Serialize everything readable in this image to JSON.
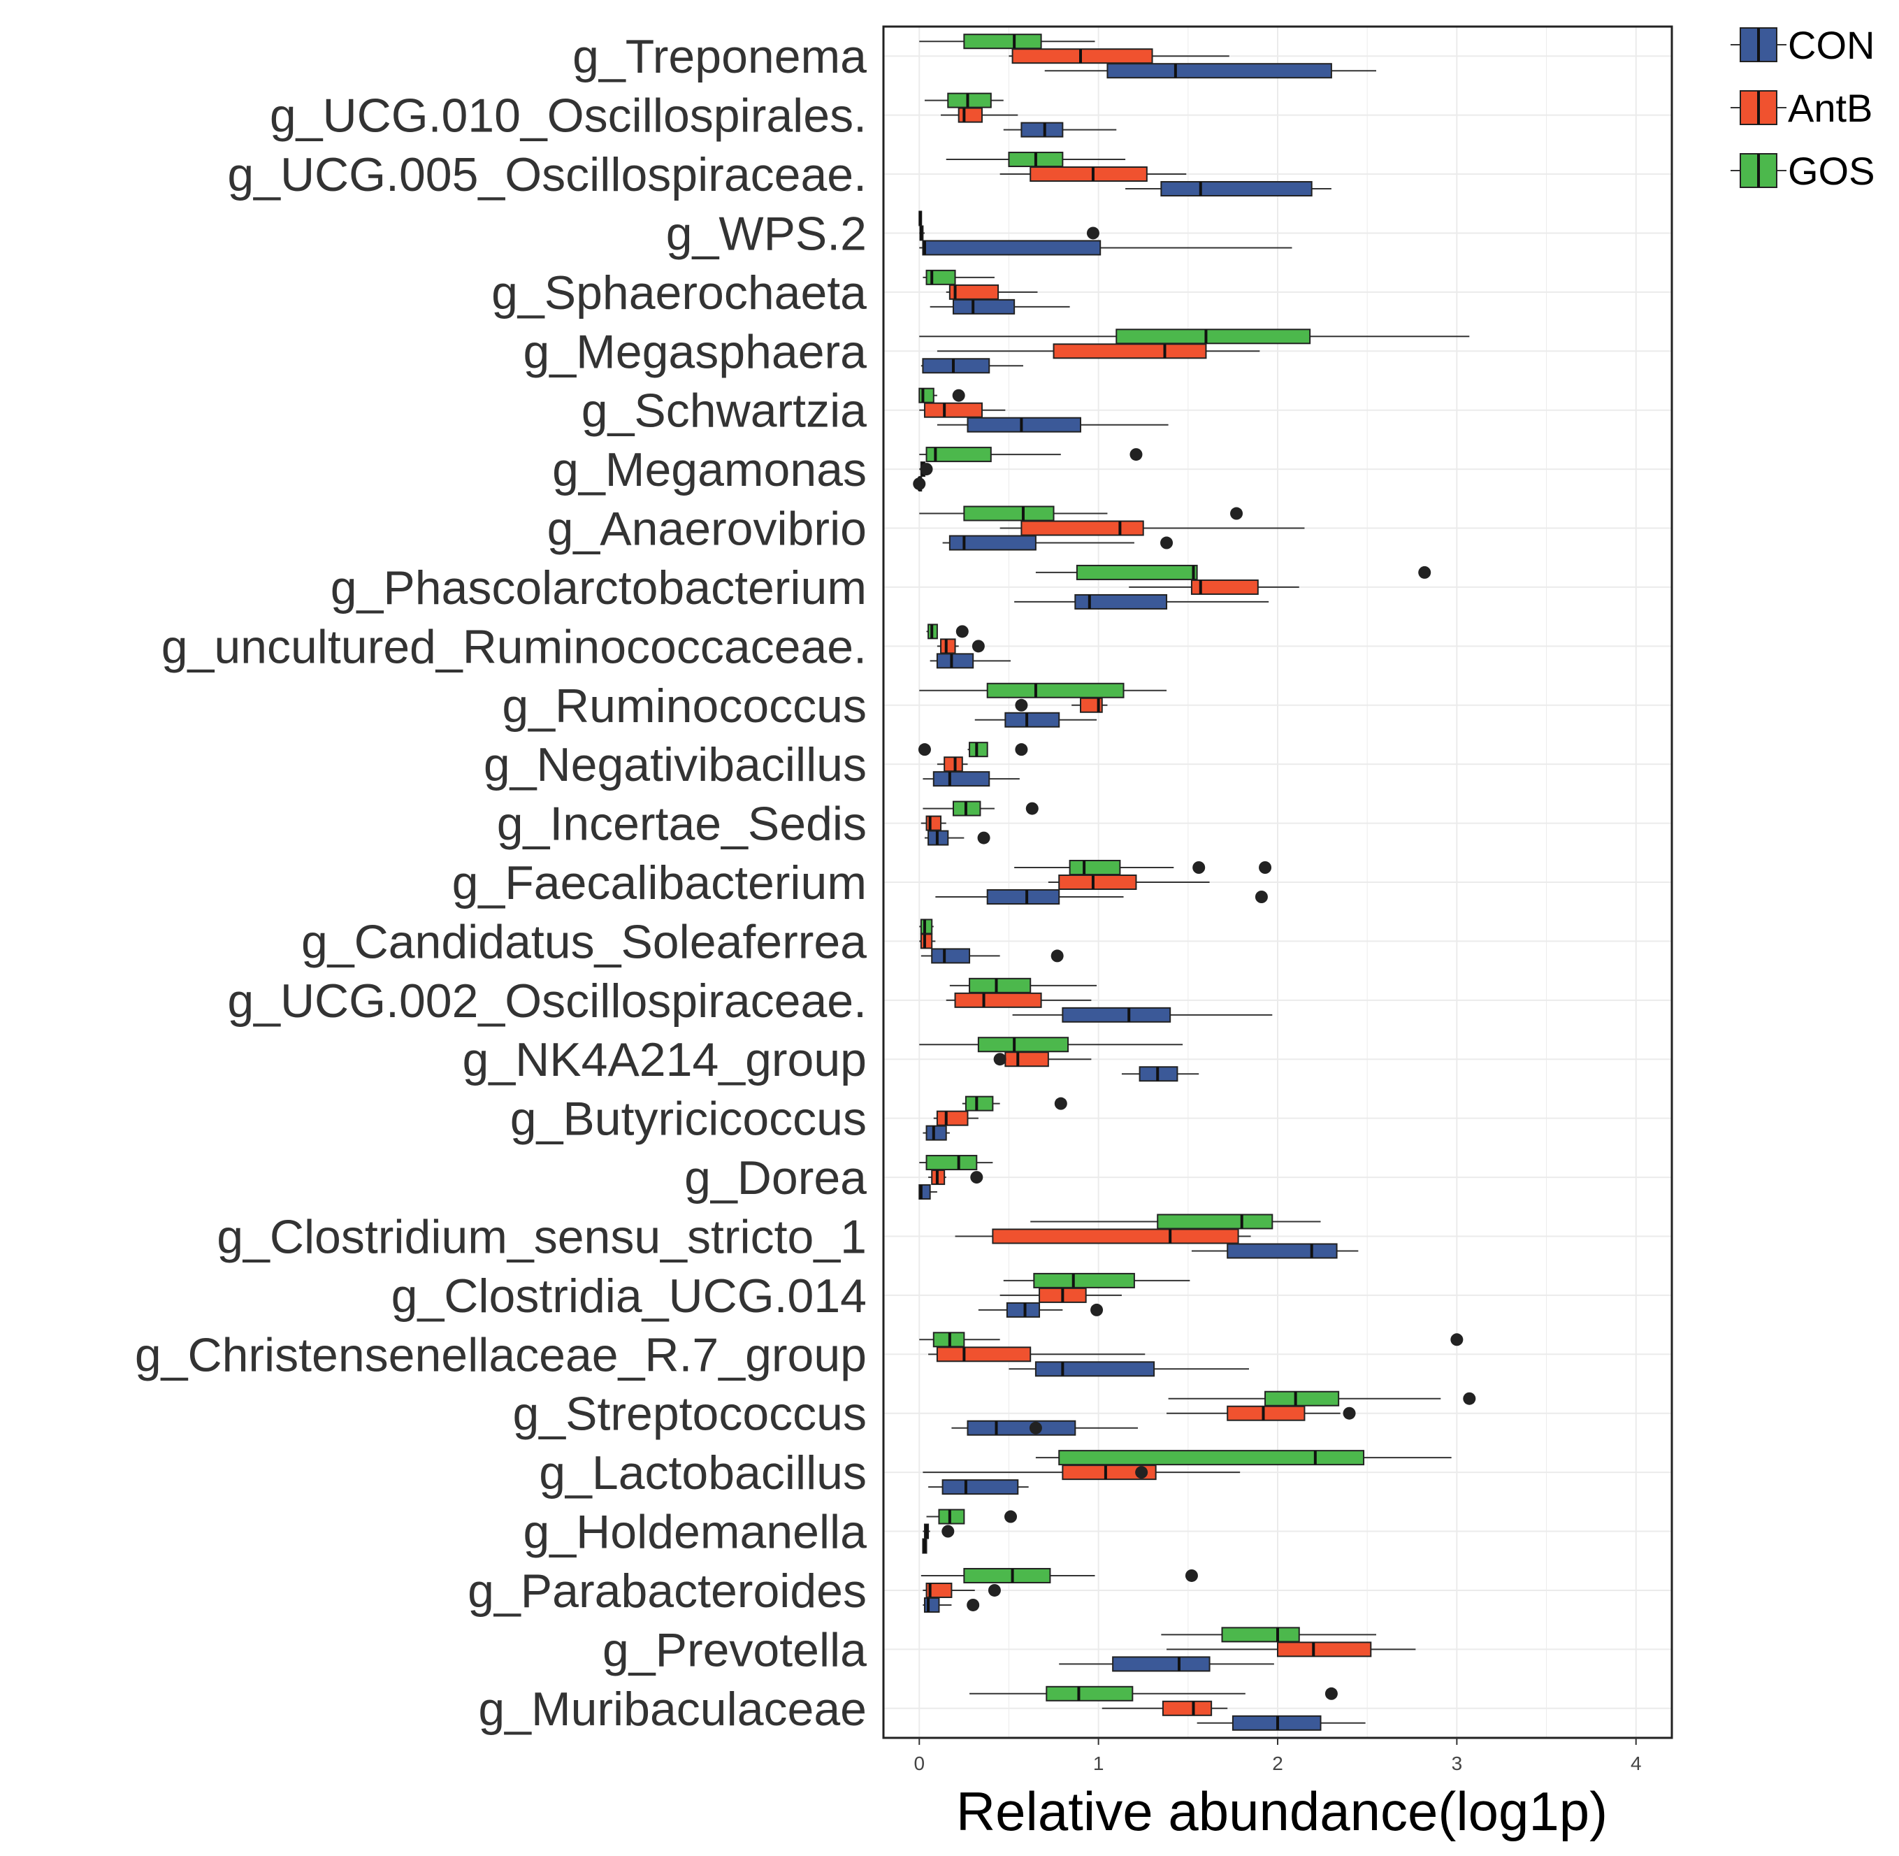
{
  "chart_data": {
    "type": "boxplot",
    "orientation": "horizontal",
    "xlabel": "Relative abundance(log1p)",
    "ylabel": "",
    "xlim": [
      -0.2,
      4.2
    ],
    "xticks": [
      0,
      1,
      2,
      3,
      4
    ],
    "grid": true,
    "legend_position": "top-right",
    "groups": [
      {
        "name": "CON",
        "color": "#3B5998"
      },
      {
        "name": "AntB",
        "color": "#F0522F"
      },
      {
        "name": "GOS",
        "color": "#4CB84C"
      }
    ],
    "categories": [
      {
        "name": "g_Treponema",
        "CON": {
          "whislo": 0.7,
          "q1": 1.05,
          "med": 1.43,
          "q3": 2.3,
          "whishi": 2.55,
          "outliers": []
        },
        "AntB": {
          "whislo": 0.5,
          "q1": 0.52,
          "med": 0.9,
          "q3": 1.3,
          "whishi": 1.73,
          "outliers": []
        },
        "GOS": {
          "whislo": 0.0,
          "q1": 0.25,
          "med": 0.53,
          "q3": 0.68,
          "whishi": 0.98,
          "outliers": []
        }
      },
      {
        "name": "g_UCG.010_Oscillospirales.",
        "CON": {
          "whislo": 0.47,
          "q1": 0.57,
          "med": 0.7,
          "q3": 0.8,
          "whishi": 1.1,
          "outliers": []
        },
        "AntB": {
          "whislo": 0.12,
          "q1": 0.22,
          "med": 0.25,
          "q3": 0.35,
          "whishi": 0.55,
          "outliers": []
        },
        "GOS": {
          "whislo": 0.03,
          "q1": 0.16,
          "med": 0.27,
          "q3": 0.4,
          "whishi": 0.47,
          "outliers": []
        }
      },
      {
        "name": "g_UCG.005_Oscillospiraceae.",
        "CON": {
          "whislo": 1.15,
          "q1": 1.35,
          "med": 1.57,
          "q3": 2.19,
          "whishi": 2.3,
          "outliers": []
        },
        "AntB": {
          "whislo": 0.45,
          "q1": 0.62,
          "med": 0.97,
          "q3": 1.27,
          "whishi": 1.49,
          "outliers": []
        },
        "GOS": {
          "whislo": 0.15,
          "q1": 0.5,
          "med": 0.65,
          "q3": 0.8,
          "whishi": 1.15,
          "outliers": []
        }
      },
      {
        "name": "g_WPS.2",
        "CON": {
          "whislo": 0.0,
          "q1": 0.02,
          "med": 0.03,
          "q3": 1.01,
          "whishi": 2.08,
          "outliers": []
        },
        "AntB": {
          "whislo": 0.0,
          "q1": 0.005,
          "med": 0.01,
          "q3": 0.02,
          "whishi": 0.03,
          "outliers": [
            0.97
          ]
        },
        "GOS": {
          "whislo": 0.0,
          "q1": 0.0,
          "med": 0.005,
          "q3": 0.01,
          "whishi": 0.01,
          "outliers": []
        }
      },
      {
        "name": "g_Sphaerochaeta",
        "CON": {
          "whislo": 0.06,
          "q1": 0.19,
          "med": 0.3,
          "q3": 0.53,
          "whishi": 0.84,
          "outliers": []
        },
        "AntB": {
          "whislo": 0.15,
          "q1": 0.17,
          "med": 0.2,
          "q3": 0.44,
          "whishi": 0.66,
          "outliers": []
        },
        "GOS": {
          "whislo": 0.02,
          "q1": 0.04,
          "med": 0.07,
          "q3": 0.2,
          "whishi": 0.42,
          "outliers": []
        }
      },
      {
        "name": "g_Megasphaera",
        "CON": {
          "whislo": 0.01,
          "q1": 0.02,
          "med": 0.19,
          "q3": 0.39,
          "whishi": 0.58,
          "outliers": []
        },
        "AntB": {
          "whislo": 0.1,
          "q1": 0.75,
          "med": 1.37,
          "q3": 1.6,
          "whishi": 1.9,
          "outliers": []
        },
        "GOS": {
          "whislo": 0.0,
          "q1": 1.1,
          "med": 1.6,
          "q3": 2.18,
          "whishi": 3.07,
          "outliers": []
        }
      },
      {
        "name": "g_Schwartzia",
        "CON": {
          "whislo": 0.1,
          "q1": 0.27,
          "med": 0.57,
          "q3": 0.9,
          "whishi": 1.39,
          "outliers": []
        },
        "AntB": {
          "whislo": 0.0,
          "q1": 0.03,
          "med": 0.14,
          "q3": 0.35,
          "whishi": 0.48,
          "outliers": []
        },
        "GOS": {
          "whislo": 0.0,
          "q1": 0.0,
          "med": 0.02,
          "q3": 0.08,
          "whishi": 0.1,
          "outliers": [
            0.22
          ]
        }
      },
      {
        "name": "g_Megamonas",
        "CON": {
          "whislo": 0.0,
          "q1": 0.0,
          "med": 0.0,
          "q3": 0.0,
          "whishi": 0.0,
          "outliers": [
            0.0
          ]
        },
        "AntB": {
          "whislo": 0.0,
          "q1": 0.01,
          "med": 0.02,
          "q3": 0.03,
          "whishi": 0.04,
          "outliers": [
            0.04
          ]
        },
        "GOS": {
          "whislo": 0.0,
          "q1": 0.04,
          "med": 0.09,
          "q3": 0.4,
          "whishi": 0.79,
          "outliers": [
            1.21
          ]
        }
      },
      {
        "name": "g_Anaerovibrio",
        "CON": {
          "whislo": 0.13,
          "q1": 0.17,
          "med": 0.25,
          "q3": 0.65,
          "whishi": 1.2,
          "outliers": [
            1.38
          ]
        },
        "AntB": {
          "whislo": 0.45,
          "q1": 0.57,
          "med": 1.12,
          "q3": 1.25,
          "whishi": 2.15,
          "outliers": []
        },
        "GOS": {
          "whislo": 0.0,
          "q1": 0.25,
          "med": 0.58,
          "q3": 0.75,
          "whishi": 1.05,
          "outliers": [
            1.77
          ]
        }
      },
      {
        "name": "g_Phascolarctobacterium",
        "CON": {
          "whislo": 0.53,
          "q1": 0.87,
          "med": 0.95,
          "q3": 1.38,
          "whishi": 1.95,
          "outliers": []
        },
        "AntB": {
          "whislo": 1.17,
          "q1": 1.52,
          "med": 1.57,
          "q3": 1.89,
          "whishi": 2.12,
          "outliers": []
        },
        "GOS": {
          "whislo": 0.65,
          "q1": 0.88,
          "med": 1.53,
          "q3": 1.55,
          "whishi": 1.55,
          "outliers": [
            2.82
          ]
        }
      },
      {
        "name": "g_uncultured_Ruminococcaceae.",
        "CON": {
          "whislo": 0.06,
          "q1": 0.1,
          "med": 0.18,
          "q3": 0.3,
          "whishi": 0.51,
          "outliers": []
        },
        "AntB": {
          "whislo": 0.1,
          "q1": 0.12,
          "med": 0.15,
          "q3": 0.2,
          "whishi": 0.22,
          "outliers": [
            0.33
          ]
        },
        "GOS": {
          "whislo": 0.04,
          "q1": 0.05,
          "med": 0.07,
          "q3": 0.1,
          "whishi": 0.1,
          "outliers": [
            0.24
          ]
        }
      },
      {
        "name": "g_Ruminococcus",
        "CON": {
          "whislo": 0.31,
          "q1": 0.48,
          "med": 0.6,
          "q3": 0.78,
          "whishi": 0.99,
          "outliers": []
        },
        "AntB": {
          "whislo": 0.85,
          "q1": 0.9,
          "med": 1.0,
          "q3": 1.02,
          "whishi": 1.05,
          "outliers": [
            0.57
          ]
        },
        "GOS": {
          "whislo": 0.0,
          "q1": 0.38,
          "med": 0.65,
          "q3": 1.14,
          "whishi": 1.38,
          "outliers": []
        }
      },
      {
        "name": "g_Negativibacillus",
        "CON": {
          "whislo": 0.02,
          "q1": 0.08,
          "med": 0.17,
          "q3": 0.39,
          "whishi": 0.56,
          "outliers": []
        },
        "AntB": {
          "whislo": 0.1,
          "q1": 0.14,
          "med": 0.2,
          "q3": 0.24,
          "whishi": 0.27,
          "outliers": []
        },
        "GOS": {
          "whislo": 0.27,
          "q1": 0.28,
          "med": 0.32,
          "q3": 0.38,
          "whishi": 0.38,
          "outliers": [
            0.03,
            0.57
          ]
        }
      },
      {
        "name": "g_Incertae_Sedis",
        "CON": {
          "whislo": 0.03,
          "q1": 0.05,
          "med": 0.1,
          "q3": 0.16,
          "whishi": 0.25,
          "outliers": [
            0.36
          ]
        },
        "AntB": {
          "whislo": 0.01,
          "q1": 0.04,
          "med": 0.06,
          "q3": 0.12,
          "whishi": 0.15,
          "outliers": []
        },
        "GOS": {
          "whislo": 0.02,
          "q1": 0.19,
          "med": 0.26,
          "q3": 0.34,
          "whishi": 0.42,
          "outliers": [
            0.63
          ]
        }
      },
      {
        "name": "g_Faecalibacterium",
        "CON": {
          "whislo": 0.09,
          "q1": 0.38,
          "med": 0.6,
          "q3": 0.78,
          "whishi": 1.14,
          "outliers": [
            1.91
          ]
        },
        "AntB": {
          "whislo": 0.72,
          "q1": 0.78,
          "med": 0.97,
          "q3": 1.21,
          "whishi": 1.62,
          "outliers": []
        },
        "GOS": {
          "whislo": 0.53,
          "q1": 0.84,
          "med": 0.92,
          "q3": 1.12,
          "whishi": 1.42,
          "outliers": [
            1.56,
            1.93
          ]
        }
      },
      {
        "name": "g_Candidatus_Soleaferrea",
        "CON": {
          "whislo": 0.01,
          "q1": 0.07,
          "med": 0.14,
          "q3": 0.28,
          "whishi": 0.45,
          "outliers": [
            0.77
          ]
        },
        "AntB": {
          "whislo": 0.0,
          "q1": 0.01,
          "med": 0.03,
          "q3": 0.07,
          "whishi": 0.09,
          "outliers": []
        },
        "GOS": {
          "whislo": 0.0,
          "q1": 0.01,
          "med": 0.03,
          "q3": 0.07,
          "whishi": 0.08,
          "outliers": []
        }
      },
      {
        "name": "g_UCG.002_Oscillospiraceae.",
        "CON": {
          "whislo": 0.52,
          "q1": 0.8,
          "med": 1.17,
          "q3": 1.4,
          "whishi": 1.97,
          "outliers": []
        },
        "AntB": {
          "whislo": 0.15,
          "q1": 0.2,
          "med": 0.36,
          "q3": 0.68,
          "whishi": 0.96,
          "outliers": []
        },
        "GOS": {
          "whislo": 0.17,
          "q1": 0.28,
          "med": 0.43,
          "q3": 0.62,
          "whishi": 0.99,
          "outliers": []
        }
      },
      {
        "name": "g_NK4A214_group",
        "CON": {
          "whislo": 1.13,
          "q1": 1.23,
          "med": 1.33,
          "q3": 1.44,
          "whishi": 1.56,
          "outliers": []
        },
        "AntB": {
          "whislo": 0.45,
          "q1": 0.48,
          "med": 0.55,
          "q3": 0.72,
          "whishi": 0.96,
          "outliers": [
            0.45
          ]
        },
        "GOS": {
          "whislo": 0.0,
          "q1": 0.33,
          "med": 0.53,
          "q3": 0.83,
          "whishi": 1.47,
          "outliers": []
        }
      },
      {
        "name": "g_Butyricicoccus",
        "CON": {
          "whislo": 0.02,
          "q1": 0.04,
          "med": 0.08,
          "q3": 0.15,
          "whishi": 0.17,
          "outliers": []
        },
        "AntB": {
          "whislo": 0.08,
          "q1": 0.1,
          "med": 0.15,
          "q3": 0.27,
          "whishi": 0.33,
          "outliers": []
        },
        "GOS": {
          "whislo": 0.24,
          "q1": 0.26,
          "med": 0.32,
          "q3": 0.41,
          "whishi": 0.45,
          "outliers": [
            0.79
          ]
        }
      },
      {
        "name": "g_Dorea",
        "CON": {
          "whislo": 0.0,
          "q1": 0.0,
          "med": 0.01,
          "q3": 0.06,
          "whishi": 0.1,
          "outliers": []
        },
        "AntB": {
          "whislo": 0.05,
          "q1": 0.07,
          "med": 0.1,
          "q3": 0.14,
          "whishi": 0.15,
          "outliers": [
            0.32
          ]
        },
        "GOS": {
          "whislo": 0.0,
          "q1": 0.04,
          "med": 0.22,
          "q3": 0.32,
          "whishi": 0.41,
          "outliers": []
        }
      },
      {
        "name": "g_Clostridium_sensu_stricto_1",
        "CON": {
          "whislo": 1.52,
          "q1": 1.72,
          "med": 2.19,
          "q3": 2.33,
          "whishi": 2.45,
          "outliers": []
        },
        "AntB": {
          "whislo": 0.2,
          "q1": 0.41,
          "med": 1.4,
          "q3": 1.78,
          "whishi": 1.85,
          "outliers": []
        },
        "GOS": {
          "whislo": 0.62,
          "q1": 1.33,
          "med": 1.8,
          "q3": 1.97,
          "whishi": 2.24,
          "outliers": []
        }
      },
      {
        "name": "g_Clostridia_UCG.014",
        "CON": {
          "whislo": 0.33,
          "q1": 0.49,
          "med": 0.59,
          "q3": 0.67,
          "whishi": 0.8,
          "outliers": [
            0.99
          ]
        },
        "AntB": {
          "whislo": 0.45,
          "q1": 0.67,
          "med": 0.8,
          "q3": 0.93,
          "whishi": 1.13,
          "outliers": []
        },
        "GOS": {
          "whislo": 0.47,
          "q1": 0.64,
          "med": 0.86,
          "q3": 1.2,
          "whishi": 1.51,
          "outliers": []
        }
      },
      {
        "name": "g_Christensenellaceae_R.7_group",
        "CON": {
          "whislo": 0.5,
          "q1": 0.65,
          "med": 0.8,
          "q3": 1.31,
          "whishi": 1.84,
          "outliers": []
        },
        "AntB": {
          "whislo": 0.05,
          "q1": 0.1,
          "med": 0.25,
          "q3": 0.62,
          "whishi": 1.26,
          "outliers": []
        },
        "GOS": {
          "whislo": 0.0,
          "q1": 0.08,
          "med": 0.17,
          "q3": 0.25,
          "whishi": 0.45,
          "outliers": [
            3.0
          ]
        }
      },
      {
        "name": "g_Streptococcus",
        "CON": {
          "whislo": 0.18,
          "q1": 0.27,
          "med": 0.43,
          "q3": 0.87,
          "whishi": 1.22,
          "outliers": [
            0.65
          ]
        },
        "AntB": {
          "whislo": 1.38,
          "q1": 1.72,
          "med": 1.92,
          "q3": 2.15,
          "whishi": 2.35,
          "outliers": [
            2.4
          ]
        },
        "GOS": {
          "whislo": 1.39,
          "q1": 1.93,
          "med": 2.1,
          "q3": 2.34,
          "whishi": 2.91,
          "outliers": [
            3.07
          ]
        }
      },
      {
        "name": "g_Lactobacillus",
        "CON": {
          "whislo": 0.05,
          "q1": 0.13,
          "med": 0.26,
          "q3": 0.55,
          "whishi": 0.61,
          "outliers": []
        },
        "AntB": {
          "whislo": 0.02,
          "q1": 0.8,
          "med": 1.04,
          "q3": 1.32,
          "whishi": 1.79,
          "outliers": [
            1.24
          ]
        },
        "GOS": {
          "whislo": 0.65,
          "q1": 0.78,
          "med": 2.21,
          "q3": 2.48,
          "whishi": 2.97,
          "outliers": []
        }
      },
      {
        "name": "g_Holdemanella",
        "CON": {
          "whislo": 0.02,
          "q1": 0.02,
          "med": 0.03,
          "q3": 0.04,
          "whishi": 0.04,
          "outliers": []
        },
        "AntB": {
          "whislo": 0.02,
          "q1": 0.03,
          "med": 0.04,
          "q3": 0.05,
          "whishi": 0.06,
          "outliers": [
            0.16
          ]
        },
        "GOS": {
          "whislo": 0.04,
          "q1": 0.11,
          "med": 0.17,
          "q3": 0.25,
          "whishi": 0.25,
          "outliers": [
            0.51
          ]
        }
      },
      {
        "name": "g_Parabacteroides",
        "CON": {
          "whislo": 0.02,
          "q1": 0.03,
          "med": 0.05,
          "q3": 0.11,
          "whishi": 0.18,
          "outliers": [
            0.3
          ]
        },
        "AntB": {
          "whislo": 0.02,
          "q1": 0.04,
          "med": 0.06,
          "q3": 0.18,
          "whishi": 0.31,
          "outliers": [
            0.42
          ]
        },
        "GOS": {
          "whislo": 0.01,
          "q1": 0.25,
          "med": 0.52,
          "q3": 0.73,
          "whishi": 0.98,
          "outliers": [
            1.52
          ]
        }
      },
      {
        "name": "g_Prevotella",
        "CON": {
          "whislo": 0.78,
          "q1": 1.08,
          "med": 1.45,
          "q3": 1.62,
          "whishi": 1.98,
          "outliers": []
        },
        "AntB": {
          "whislo": 1.38,
          "q1": 2.0,
          "med": 2.2,
          "q3": 2.52,
          "whishi": 2.77,
          "outliers": []
        },
        "GOS": {
          "whislo": 1.35,
          "q1": 1.69,
          "med": 2.0,
          "q3": 2.12,
          "whishi": 2.55,
          "outliers": []
        }
      },
      {
        "name": "g_Muribaculaceae",
        "CON": {
          "whislo": 1.55,
          "q1": 1.75,
          "med": 2.0,
          "q3": 2.24,
          "whishi": 2.49,
          "outliers": []
        },
        "AntB": {
          "whislo": 1.02,
          "q1": 1.36,
          "med": 1.53,
          "q3": 1.63,
          "whishi": 1.72,
          "outliers": []
        },
        "GOS": {
          "whislo": 0.28,
          "q1": 0.71,
          "med": 0.89,
          "q3": 1.19,
          "whishi": 1.82,
          "outliers": [
            2.3
          ]
        }
      }
    ]
  }
}
